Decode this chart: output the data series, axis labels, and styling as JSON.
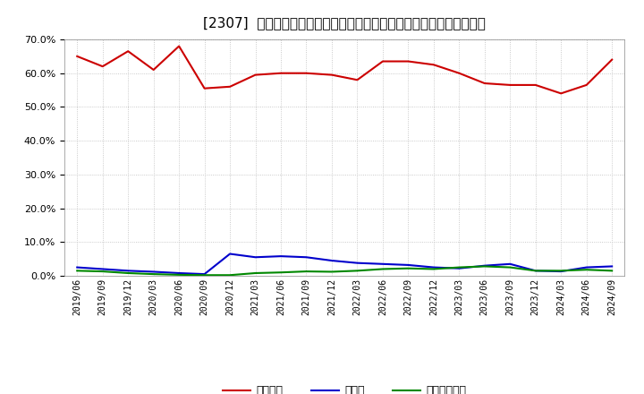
{
  "title": "[2307]  自己資本、のれん、繰延税金資産の総資産に対する比率の推移",
  "dates": [
    "2019/06",
    "2019/09",
    "2019/12",
    "2020/03",
    "2020/06",
    "2020/09",
    "2020/12",
    "2021/03",
    "2021/06",
    "2021/09",
    "2021/12",
    "2022/03",
    "2022/06",
    "2022/09",
    "2022/12",
    "2023/03",
    "2023/06",
    "2023/09",
    "2023/12",
    "2024/03",
    "2024/06",
    "2024/09"
  ],
  "jiko_shihon": [
    65.0,
    62.0,
    66.5,
    61.0,
    68.0,
    55.5,
    56.0,
    59.5,
    60.0,
    60.0,
    59.5,
    58.0,
    63.5,
    63.5,
    62.5,
    60.0,
    57.0,
    56.5,
    56.5,
    54.0,
    56.5,
    64.0
  ],
  "noren": [
    2.5,
    2.0,
    1.5,
    1.2,
    0.8,
    0.5,
    6.5,
    5.5,
    5.8,
    5.5,
    4.5,
    3.8,
    3.5,
    3.2,
    2.5,
    2.2,
    3.0,
    3.5,
    1.5,
    1.3,
    2.5,
    2.8
  ],
  "kunobi_zekin": [
    1.5,
    1.3,
    0.8,
    0.5,
    0.3,
    0.2,
    0.2,
    0.8,
    1.0,
    1.3,
    1.2,
    1.5,
    2.0,
    2.2,
    2.0,
    2.5,
    2.8,
    2.5,
    1.5,
    1.5,
    1.8,
    1.5
  ],
  "line_color_jiko": "#cc0000",
  "line_color_noren": "#0000cc",
  "line_color_kunobi": "#008800",
  "legend_labels": [
    "自己資本",
    "のれん",
    "繰延税金資産"
  ],
  "ylim": [
    0.0,
    70.0
  ],
  "yticks": [
    0.0,
    10.0,
    20.0,
    30.0,
    40.0,
    50.0,
    60.0,
    70.0
  ],
  "bg_color": "#ffffff",
  "plot_bg_color": "#ffffff",
  "grid_color": "#aaaaaa",
  "title_fontsize": 11
}
